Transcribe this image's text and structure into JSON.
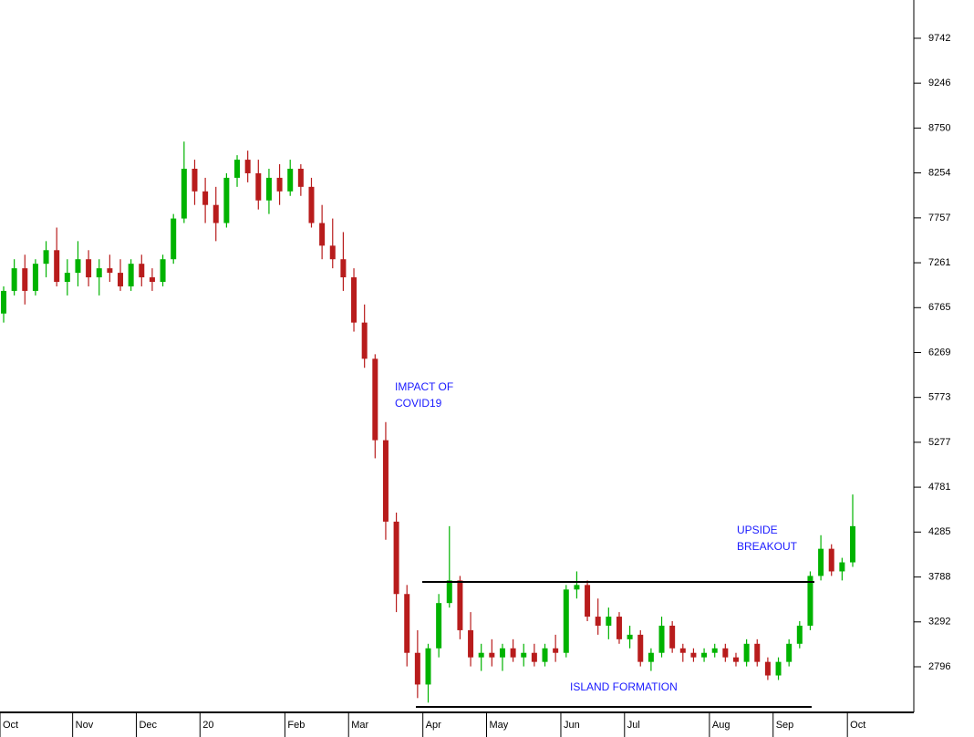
{
  "chart_data": {
    "type": "candlestick",
    "categories": [
      "Oct",
      null,
      null,
      null,
      null,
      null,
      null,
      "Nov",
      null,
      null,
      null,
      null,
      null,
      "Dec",
      null,
      null,
      null,
      null,
      null,
      "20",
      null,
      null,
      null,
      null,
      null,
      null,
      null,
      "Feb",
      null,
      null,
      null,
      null,
      null,
      "Mar",
      null,
      null,
      null,
      null,
      null,
      null,
      "Apr",
      null,
      null,
      null,
      null,
      null,
      "May",
      null,
      null,
      null,
      null,
      null,
      null,
      "Jun",
      null,
      null,
      null,
      null,
      null,
      "Jul",
      null,
      null,
      null,
      null,
      null,
      null,
      null,
      "Aug",
      null,
      null,
      null,
      null,
      null,
      "Sep",
      null,
      null,
      null,
      null,
      null,
      null,
      "Oct"
    ],
    "open": [
      6700,
      6950,
      7200,
      6950,
      7250,
      7400,
      7050,
      7150,
      7300,
      7100,
      7200,
      7150,
      7000,
      7250,
      7100,
      7050,
      7300,
      7750,
      8300,
      8050,
      7900,
      7700,
      8200,
      8400,
      8250,
      7950,
      8200,
      8050,
      8300,
      8100,
      7700,
      7450,
      7300,
      7100,
      6600,
      6200,
      5300,
      4400,
      3600,
      2950,
      2600,
      3000,
      3500,
      3750,
      3200,
      2900,
      2950,
      2900,
      3000,
      2900,
      2950,
      2850,
      3000,
      2950,
      3650,
      3700,
      3350,
      3250,
      3350,
      3100,
      3150,
      2850,
      2950,
      3250,
      3000,
      2950,
      2900,
      2950,
      3000,
      2900,
      2850,
      3050,
      2850,
      2700,
      2850,
      3050,
      3250,
      3800,
      4100,
      3850,
      3950
    ],
    "high": [
      7000,
      7300,
      7350,
      7300,
      7500,
      7650,
      7300,
      7500,
      7400,
      7300,
      7350,
      7300,
      7300,
      7350,
      7200,
      7350,
      7800,
      8600,
      8400,
      8200,
      8100,
      8250,
      8450,
      8500,
      8400,
      8300,
      8350,
      8400,
      8350,
      8200,
      7900,
      7750,
      7600,
      7200,
      6800,
      6250,
      5500,
      4500,
      3700,
      3200,
      3050,
      3600,
      4350,
      3800,
      3400,
      3050,
      3100,
      3050,
      3100,
      3050,
      3050,
      3050,
      3150,
      3700,
      3850,
      3750,
      3550,
      3450,
      3400,
      3250,
      3200,
      3000,
      3350,
      3300,
      3050,
      3000,
      3000,
      3050,
      3050,
      2950,
      3100,
      3100,
      2900,
      2900,
      3100,
      3300,
      3850,
      4250,
      4150,
      4000,
      4700
    ],
    "low": [
      6600,
      6900,
      6800,
      6900,
      7100,
      7000,
      6900,
      7000,
      7000,
      6900,
      7050,
      6950,
      6950,
      7000,
      6950,
      7000,
      7250,
      7700,
      7900,
      7700,
      7500,
      7650,
      8100,
      8150,
      7850,
      7800,
      7900,
      8000,
      8000,
      7650,
      7300,
      7200,
      6950,
      6500,
      6100,
      5100,
      4200,
      3400,
      2800,
      2450,
      2400,
      2900,
      3450,
      3100,
      2800,
      2750,
      2800,
      2750,
      2850,
      2800,
      2800,
      2800,
      2850,
      2900,
      3550,
      3300,
      3150,
      3100,
      3050,
      3000,
      2800,
      2750,
      2900,
      2950,
      2850,
      2850,
      2850,
      2900,
      2850,
      2800,
      2800,
      2800,
      2650,
      2650,
      2800,
      3000,
      3200,
      3750,
      3800,
      3750,
      3900
    ],
    "close": [
      6950,
      7200,
      6950,
      7250,
      7400,
      7050,
      7150,
      7300,
      7100,
      7200,
      7150,
      7000,
      7250,
      7100,
      7050,
      7300,
      7750,
      8300,
      8050,
      7900,
      7700,
      8200,
      8400,
      8250,
      7950,
      8200,
      8050,
      8300,
      8100,
      7700,
      7450,
      7300,
      7100,
      6600,
      6200,
      5300,
      4400,
      3600,
      2950,
      2600,
      3000,
      3500,
      3750,
      3200,
      2900,
      2950,
      2900,
      3000,
      2900,
      2950,
      2850,
      3000,
      2950,
      3650,
      3700,
      3350,
      3250,
      3350,
      3100,
      3150,
      2850,
      2950,
      3250,
      3000,
      2950,
      2900,
      2950,
      3000,
      2900,
      2850,
      3050,
      2850,
      2700,
      2850,
      3050,
      3250,
      3800,
      4100,
      3850,
      3950,
      4350
    ],
    "up_color": "#00b300",
    "down_color": "#b81c1c",
    "ylim": [
      2292,
      10165
    ],
    "yticks": [
      2796,
      3292,
      3788,
      4285,
      4781,
      5277,
      5773,
      6269,
      6765,
      7261,
      7757,
      8254,
      8750,
      9246,
      9742
    ],
    "levels": [
      3734,
      2353
    ],
    "annotations": [
      [
        "IMPACT OF",
        "COVID19"
      ],
      [
        "UPSIDE",
        "BREAKOUT"
      ],
      [
        "ISLAND FORMATION"
      ]
    ]
  }
}
